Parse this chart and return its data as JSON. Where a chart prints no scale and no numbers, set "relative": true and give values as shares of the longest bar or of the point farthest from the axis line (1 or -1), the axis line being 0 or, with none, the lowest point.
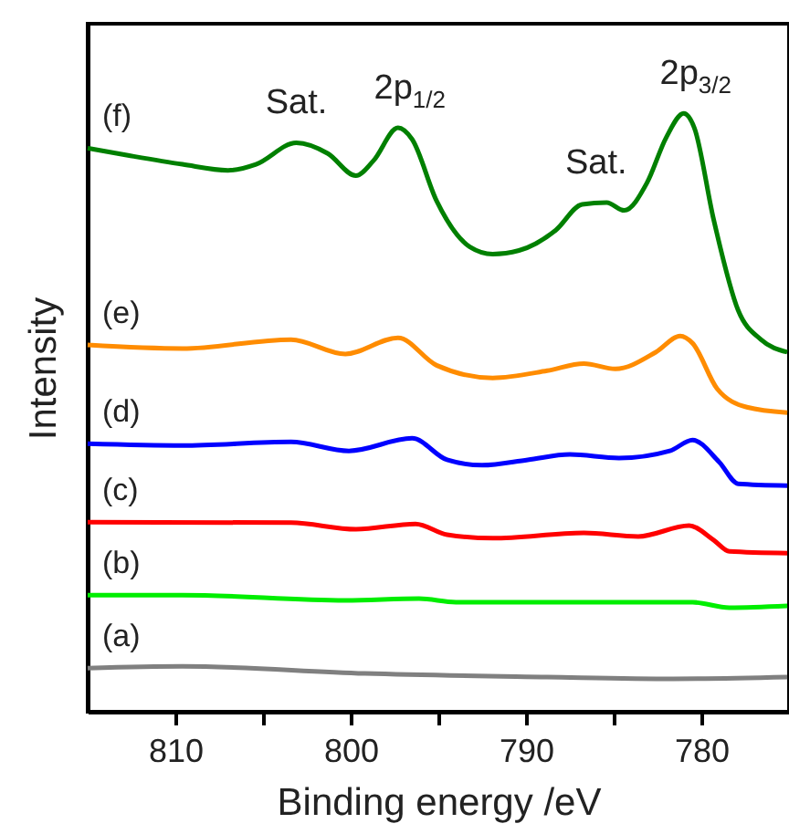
{
  "chart_data": {
    "type": "line",
    "relative": true,
    "xlabel": "Binding energy /eV",
    "ylabel": "Intensity",
    "xlim": [
      815,
      775
    ],
    "xticks": [
      810,
      {
        "value": 805,
        "label": null
      },
      800,
      {
        "value": 795,
        "label": null
      },
      790,
      {
        "value": 785,
        "label": null
      },
      780
    ],
    "grid": false,
    "marker": "none",
    "line_style": "solid",
    "tick_labels": "x",
    "annotations": [
      {
        "text": "Sat.",
        "x": 803.1,
        "y": 0.951
      },
      {
        "text": "2p$_{1/2}$",
        "x": 797.3,
        "y": 0.976
      },
      {
        "text": "Sat.",
        "x": 786.0,
        "y": 0.851
      },
      {
        "text": "2p$_{3/2}$",
        "x": 781.0,
        "y": 1.0
      }
    ],
    "series": [
      {
        "name": "(a)",
        "color": "#808080",
        "x": [
          815,
          809.6,
          799.2,
          788.8,
          781.6,
          775.1
        ],
        "values": [
          0.073,
          0.076,
          0.064,
          0.058,
          0.055,
          0.058
        ]
      },
      {
        "name": "(b)",
        "color": "#00ee00",
        "x": [
          815,
          809.6,
          800.3,
          796.1,
          794.0,
          780.5,
          778.4,
          775.1
        ],
        "values": [
          0.195,
          0.195,
          0.186,
          0.189,
          0.183,
          0.183,
          0.174,
          0.177
        ]
      },
      {
        "name": "(c)",
        "color": "#ff0000",
        "x": [
          815,
          803.4,
          799.7,
          796.3,
          794.5,
          791.9,
          786.7,
          783.6,
          780.7,
          779.3,
          778.4,
          775.1
        ],
        "values": [
          0.317,
          0.316,
          0.305,
          0.314,
          0.296,
          0.29,
          0.299,
          0.293,
          0.311,
          0.287,
          0.268,
          0.265
        ]
      },
      {
        "name": "(d)",
        "color": "#0000ff",
        "x": [
          815,
          809.6,
          803.4,
          800.1,
          796.5,
          794.5,
          792.5,
          789.9,
          787.5,
          784.7,
          781.8,
          780.5,
          779.0,
          777.9,
          775.1
        ],
        "values": [
          0.448,
          0.445,
          0.451,
          0.436,
          0.457,
          0.421,
          0.412,
          0.421,
          0.43,
          0.424,
          0.436,
          0.454,
          0.418,
          0.381,
          0.378
        ]
      },
      {
        "name": "(e)",
        "color": "#ff8c00",
        "x": [
          815,
          809.6,
          803.4,
          800.3,
          797.3,
          795.1,
          791.9,
          788.8,
          786.7,
          784.9,
          782.6,
          781.2,
          780.5,
          779.1,
          777.4,
          775.1
        ],
        "values": [
          0.613,
          0.607,
          0.622,
          0.598,
          0.625,
          0.579,
          0.558,
          0.57,
          0.582,
          0.573,
          0.601,
          0.628,
          0.616,
          0.54,
          0.509,
          0.5
        ]
      },
      {
        "name": "(f)",
        "color": "#008000",
        "x": [
          815,
          812.7,
          809.6,
          807.0,
          805.4,
          803.1,
          801.3,
          799.7,
          798.7,
          797.3,
          796.5,
          795.1,
          793.2,
          791.9,
          790.4,
          788.3,
          786.8,
          785.4,
          784.4,
          783.1,
          782.0,
          781.0,
          780.4,
          779.3,
          777.9,
          776.6,
          775.1
        ],
        "values": [
          0.942,
          0.93,
          0.915,
          0.905,
          0.915,
          0.951,
          0.933,
          0.896,
          0.921,
          0.976,
          0.957,
          0.854,
          0.777,
          0.765,
          0.771,
          0.805,
          0.848,
          0.851,
          0.838,
          0.884,
          0.96,
          1.0,
          0.976,
          0.823,
          0.671,
          0.622,
          0.601
        ]
      }
    ]
  }
}
